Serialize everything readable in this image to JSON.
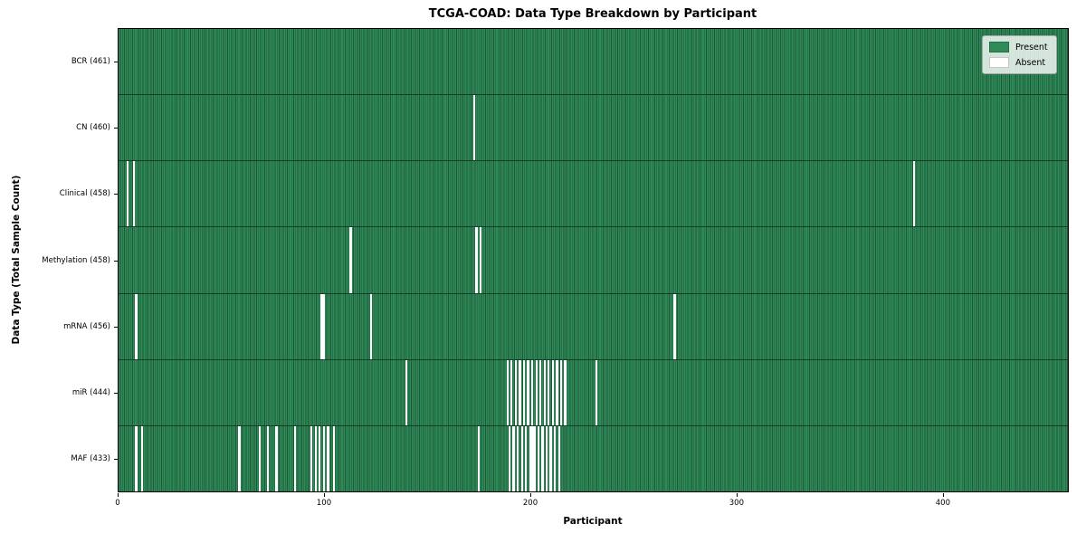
{
  "chart_data": {
    "type": "heatmap",
    "title": "TCGA-COAD: Data Type Breakdown by Participant",
    "xlabel": "Participant",
    "ylabel": "Data Type (Total Sample Count)",
    "x_ticks": [
      0,
      100,
      200,
      300,
      400
    ],
    "xlim": [
      0,
      461
    ],
    "total_participants": 461,
    "present_color": "#2e8b57",
    "bar_edge_color": "#1d5737",
    "absent_color": "#ffffff",
    "grid": false,
    "legend": {
      "position": "upper right",
      "entries": [
        "Present",
        "Absent"
      ]
    },
    "rows": [
      {
        "label": "BCR",
        "count": 461,
        "tick_label": "BCR (461)",
        "absent_participants": []
      },
      {
        "label": "CN",
        "count": 460,
        "tick_label": "CN (460)",
        "absent_participants": [
          172
        ]
      },
      {
        "label": "Clinical",
        "count": 458,
        "tick_label": "Clinical (458)",
        "absent_participants": [
          4,
          7,
          385
        ]
      },
      {
        "label": "Methylation",
        "count": 458,
        "tick_label": "Methylation (458)",
        "absent_participants": [
          112,
          173,
          175
        ]
      },
      {
        "label": "mRNA",
        "count": 456,
        "tick_label": "mRNA (456)",
        "absent_participants": [
          8,
          98,
          99,
          122,
          269
        ]
      },
      {
        "label": "miR",
        "count": 444,
        "tick_label": "miR (444)",
        "absent_participants": [
          139,
          188,
          190,
          192,
          194,
          196,
          198,
          200,
          202,
          204,
          206,
          208,
          210,
          212,
          214,
          216,
          231
        ]
      },
      {
        "label": "MAF",
        "count": 433,
        "tick_label": "MAF (433)",
        "absent_participants": [
          8,
          11,
          58,
          68,
          72,
          76,
          85,
          93,
          95,
          97,
          99,
          101,
          104,
          174,
          189,
          191,
          193,
          195,
          197,
          199,
          200,
          201,
          203,
          205,
          207,
          209,
          211,
          213
        ]
      }
    ]
  }
}
